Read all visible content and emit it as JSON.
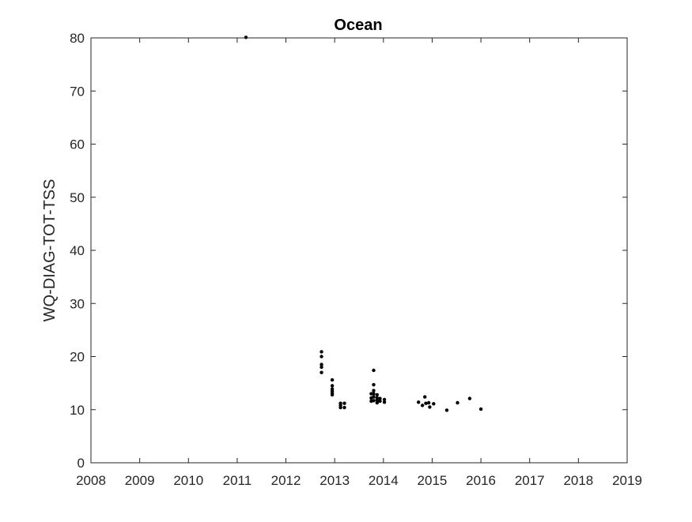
{
  "chart_data": {
    "type": "scatter",
    "title": "Ocean",
    "xlabel": "",
    "ylabel": "WQ-DIAG-TOT-TSS",
    "xlim": [
      2008,
      2019
    ],
    "ylim": [
      0,
      80
    ],
    "xticks": [
      "2008",
      "2009",
      "2010",
      "2011",
      "2012",
      "2013",
      "2014",
      "2015",
      "2016",
      "2017",
      "2018",
      "2019"
    ],
    "yticks": [
      "0",
      "10",
      "20",
      "30",
      "40",
      "50",
      "60",
      "70",
      "80"
    ],
    "grid": false,
    "marker_color": "#000000",
    "x": [
      2011.18,
      2012.73,
      2012.73,
      2012.73,
      2012.73,
      2012.73,
      2012.95,
      2012.95,
      2012.95,
      2012.95,
      2012.95,
      2012.95,
      2013.12,
      2013.12,
      2013.12,
      2013.2,
      2013.2,
      2013.75,
      2013.75,
      2013.75,
      2013.8,
      2013.8,
      2013.8,
      2013.8,
      2013.8,
      2013.8,
      2013.87,
      2013.87,
      2013.87,
      2013.87,
      2013.93,
      2013.93,
      2014.02,
      2014.02,
      2014.72,
      2014.8,
      2014.85,
      2014.87,
      2014.93,
      2014.95,
      2015.03,
      2015.3,
      2015.52,
      2015.77,
      2016.0
    ],
    "y": [
      80.1,
      20.9,
      20.0,
      18.5,
      18.0,
      17.0,
      15.6,
      14.5,
      13.9,
      13.5,
      13.1,
      12.8,
      11.2,
      10.8,
      10.4,
      11.2,
      10.4,
      13.0,
      12.2,
      11.6,
      17.4,
      14.7,
      13.6,
      13.0,
      12.4,
      11.7,
      12.8,
      12.2,
      11.8,
      11.3,
      12.1,
      11.6,
      11.9,
      11.4,
      11.4,
      10.8,
      12.4,
      11.2,
      11.3,
      10.5,
      11.1,
      9.9,
      11.3,
      12.1,
      10.1
    ]
  }
}
